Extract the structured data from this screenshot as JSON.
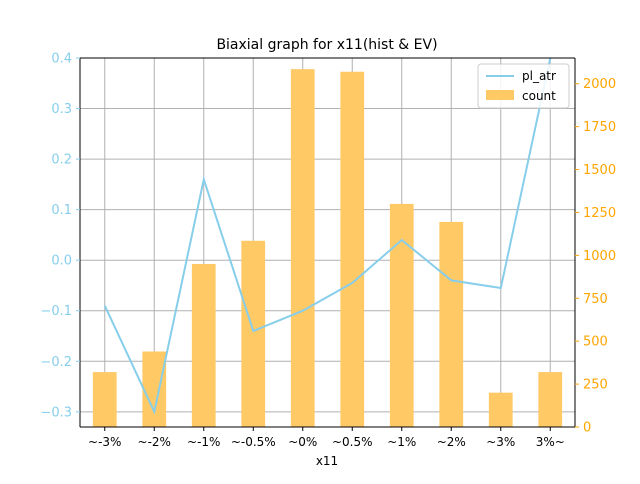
{
  "chart_data": {
    "type": "bar",
    "title": "Biaxial graph for x11(hist & EV)",
    "xlabel": "x11",
    "categories": [
      "~-3%",
      "~-2%",
      "~-1%",
      "~-0.5%",
      "~0%",
      "~0.5%",
      "~1%",
      "~2%",
      "~3%",
      "3%~"
    ],
    "grid": true,
    "legend_position": "top-right",
    "left_axis": {
      "ylim": [
        -0.33,
        0.4
      ],
      "ticks": [
        -0.3,
        -0.2,
        -0.1,
        0.0,
        0.1,
        0.2,
        0.3,
        0.4
      ],
      "tick_labels": [
        "−0.3",
        "−0.2",
        "−0.1",
        "0.0",
        "0.1",
        "0.2",
        "0.3",
        "0.4"
      ],
      "color": "#87ceeb"
    },
    "right_axis": {
      "ylim": [
        0,
        2150
      ],
      "ticks": [
        0,
        250,
        500,
        750,
        1000,
        1250,
        1500,
        1750,
        2000
      ],
      "tick_labels": [
        "0",
        "250",
        "500",
        "750",
        "1000",
        "1250",
        "1500",
        "1750",
        "2000"
      ],
      "color": "#ffa500"
    },
    "series": [
      {
        "name": "pl_atr",
        "kind": "line",
        "axis": "left",
        "color": "#87ceeb",
        "values": [
          -0.09,
          -0.3,
          0.16,
          -0.14,
          -0.1,
          -0.045,
          0.04,
          -0.04,
          -0.055,
          0.4
        ]
      },
      {
        "name": "count",
        "kind": "bar",
        "axis": "right",
        "color": "#ffc966",
        "values": [
          320,
          440,
          950,
          1085,
          2085,
          2070,
          1300,
          1195,
          200,
          320
        ]
      }
    ]
  }
}
